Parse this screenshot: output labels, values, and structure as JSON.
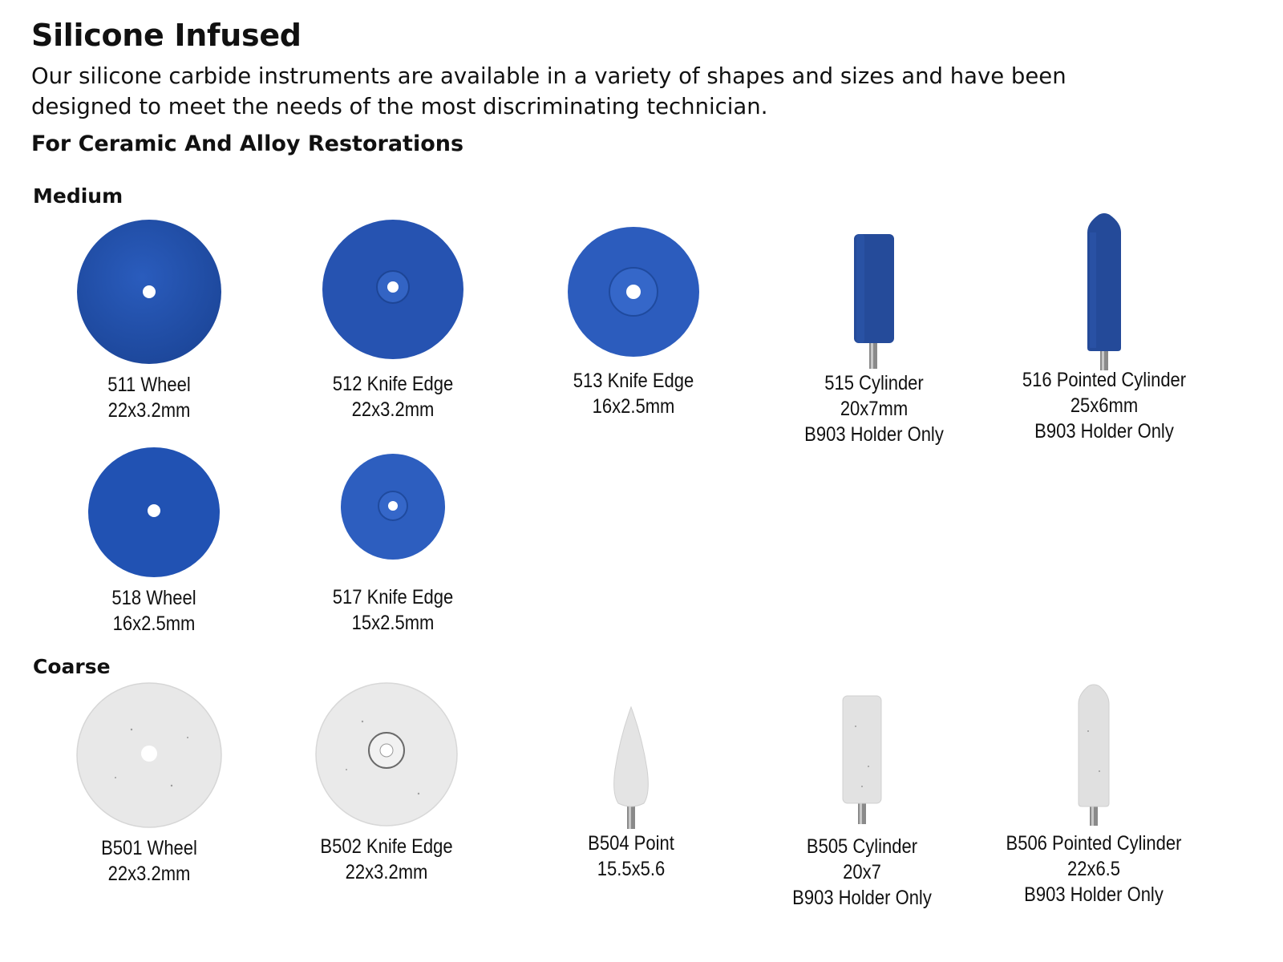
{
  "header": {
    "title": "Silicone Infused",
    "intro": "Our silicone carbide instruments are available in a variety of shapes and sizes and have been designed to meet the needs of the most discriminating technician.",
    "subtitle": "For Ceramic And Alloy Restorations"
  },
  "medium": {
    "label": "Medium",
    "color": "#2350a8",
    "items": [
      {
        "name": "511 Wheel",
        "size": "22x3.2mm"
      },
      {
        "name": "512 Knife Edge",
        "size": "22x3.2mm"
      },
      {
        "name": "513 Knife Edge",
        "size": "16x2.5mm"
      },
      {
        "name": "515 Cylinder",
        "size": "20x7mm",
        "note": "B903 Holder Only"
      },
      {
        "name": "516 Pointed Cylinder",
        "size": "25x6mm",
        "note": "B903 Holder Only"
      },
      {
        "name": "518 Wheel",
        "size": "16x2.5mm"
      },
      {
        "name": "517 Knife Edge",
        "size": "15x2.5mm"
      }
    ]
  },
  "coarse": {
    "label": "Coarse",
    "color": "#e6e6e6",
    "items": [
      {
        "name": "B501 Wheel",
        "size": "22x3.2mm"
      },
      {
        "name": "B502 Knife Edge",
        "size": "22x3.2mm"
      },
      {
        "name": "B504 Point",
        "size": "15.5x5.6"
      },
      {
        "name": "B505 Cylinder",
        "size": "20x7",
        "note": "B903 Holder Only"
      },
      {
        "name": "B506 Pointed Cylinder",
        "size": "22x6.5",
        "note": "B903 Holder Only"
      }
    ]
  }
}
